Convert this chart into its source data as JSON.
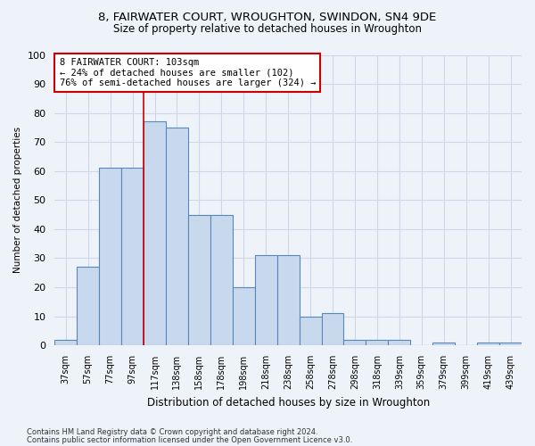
{
  "title": "8, FAIRWATER COURT, WROUGHTON, SWINDON, SN4 9DE",
  "subtitle": "Size of property relative to detached houses in Wroughton",
  "xlabel": "Distribution of detached houses by size in Wroughton",
  "ylabel": "Number of detached properties",
  "bar_color": "#c9d9ed",
  "bar_edge_color": "#5588bb",
  "categories": [
    "37sqm",
    "57sqm",
    "77sqm",
    "97sqm",
    "117sqm",
    "138sqm",
    "158sqm",
    "178sqm",
    "198sqm",
    "218sqm",
    "238sqm",
    "258sqm",
    "278sqm",
    "298sqm",
    "318sqm",
    "339sqm",
    "359sqm",
    "379sqm",
    "399sqm",
    "419sqm",
    "439sqm"
  ],
  "values": [
    2,
    27,
    61,
    61,
    77,
    75,
    45,
    45,
    20,
    31,
    31,
    10,
    11,
    2,
    2,
    2,
    0,
    1,
    0,
    1,
    1
  ],
  "ylim": [
    0,
    100
  ],
  "yticks": [
    0,
    10,
    20,
    30,
    40,
    50,
    60,
    70,
    80,
    90,
    100
  ],
  "vline_x": 3.5,
  "annotation_line1": "8 FAIRWATER COURT: 103sqm",
  "annotation_line2": "← 24% of detached houses are smaller (102)",
  "annotation_line3": "76% of semi-detached houses are larger (324) →",
  "annotation_box_color": "#ffffff",
  "annotation_box_edge": "#cc0000",
  "footnote1": "Contains HM Land Registry data © Crown copyright and database right 2024.",
  "footnote2": "Contains public sector information licensed under the Open Government Licence v3.0.",
  "vline_color": "#cc0000",
  "bg_color": "#eef2f9",
  "grid_color": "#d0d8e8",
  "title_fontsize": 9.5,
  "subtitle_fontsize": 8.5
}
